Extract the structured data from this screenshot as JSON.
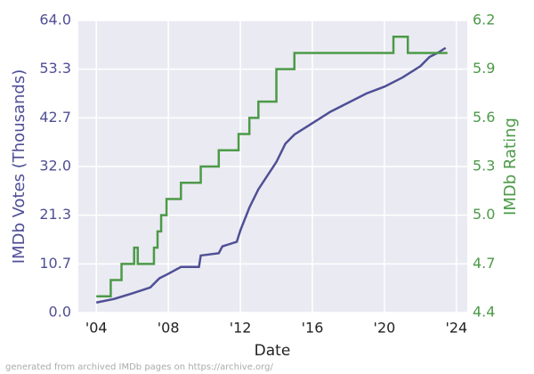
{
  "chart_data": {
    "type": "line",
    "x_label": "Date",
    "y_label": "IMDb Votes (Thousands)",
    "y2_label": "IMDb Rating",
    "footer": "generated from archived IMDb pages on https://archive.org/",
    "xlim": [
      2003.0,
      2024.6
    ],
    "xticks": [
      {
        "value": 2004,
        "label": "'04"
      },
      {
        "value": 2008,
        "label": "'08"
      },
      {
        "value": 2012,
        "label": "'12"
      },
      {
        "value": 2016,
        "label": "'16"
      },
      {
        "value": 2020,
        "label": "'20"
      },
      {
        "value": 2024,
        "label": "'24"
      }
    ],
    "ylim": [
      0,
      64
    ],
    "yticks": [
      {
        "value": 0,
        "label": "0.0"
      },
      {
        "value": 10.667,
        "label": "10.7"
      },
      {
        "value": 21.333,
        "label": "21.3"
      },
      {
        "value": 32,
        "label": "32.0"
      },
      {
        "value": 42.667,
        "label": "42.7"
      },
      {
        "value": 53.333,
        "label": "53.3"
      },
      {
        "value": 64,
        "label": "64.0"
      }
    ],
    "y2lim": [
      4.4,
      6.2
    ],
    "y2ticks": [
      4.4,
      4.7,
      {
        "value": 5,
        "label": "5.0"
      },
      5.3,
      5.6,
      5.9,
      6.2
    ],
    "grid": true,
    "series": [
      {
        "name": "IMDb Votes (Thousands)",
        "color": "#4f4f96",
        "axis": "y",
        "x": [
          2004,
          2005,
          2006,
          2007,
          2007.5,
          2008,
          2008.7,
          2009.7,
          2009.8,
          2010.8,
          2011,
          2011.8,
          2012,
          2012.5,
          2013,
          2013.5,
          2014,
          2014.5,
          2015,
          2016,
          2017,
          2018,
          2019,
          2020,
          2021,
          2022,
          2022.5,
          2023,
          2023.4
        ],
        "values": [
          2.2,
          3,
          4.2,
          5.5,
          7.5,
          8.5,
          10,
          10,
          12.5,
          13,
          14.5,
          15.5,
          18,
          23,
          27,
          30,
          33,
          37,
          39,
          41.5,
          44,
          46,
          48,
          49.5,
          51.5,
          54,
          56,
          57,
          58
        ]
      },
      {
        "name": "IMDb Rating",
        "color": "#4c9a48",
        "axis": "y2",
        "x": [
          2004,
          2004.8,
          2004.8,
          2005.4,
          2005.4,
          2006.1,
          2006.1,
          2006.3,
          2006.3,
          2007.2,
          2007.2,
          2007.4,
          2007.4,
          2007.6,
          2007.6,
          2007.9,
          2007.9,
          2008.7,
          2008.7,
          2009.8,
          2009.8,
          2010.8,
          2010.8,
          2011.9,
          2011.9,
          2012.5,
          2012.5,
          2013,
          2013,
          2014,
          2014,
          2015,
          2015,
          2020.5,
          2020.5,
          2021.3,
          2021.3,
          2023.5
        ],
        "values": [
          4.5,
          4.5,
          4.6,
          4.6,
          4.7,
          4.7,
          4.8,
          4.8,
          4.7,
          4.7,
          4.8,
          4.8,
          4.9,
          4.9,
          5.0,
          5.0,
          5.1,
          5.1,
          5.2,
          5.2,
          5.3,
          5.3,
          5.4,
          5.4,
          5.5,
          5.5,
          5.6,
          5.6,
          5.7,
          5.7,
          5.9,
          5.9,
          6.0,
          6.0,
          6.1,
          6.1,
          6.0,
          6.0
        ]
      }
    ]
  }
}
